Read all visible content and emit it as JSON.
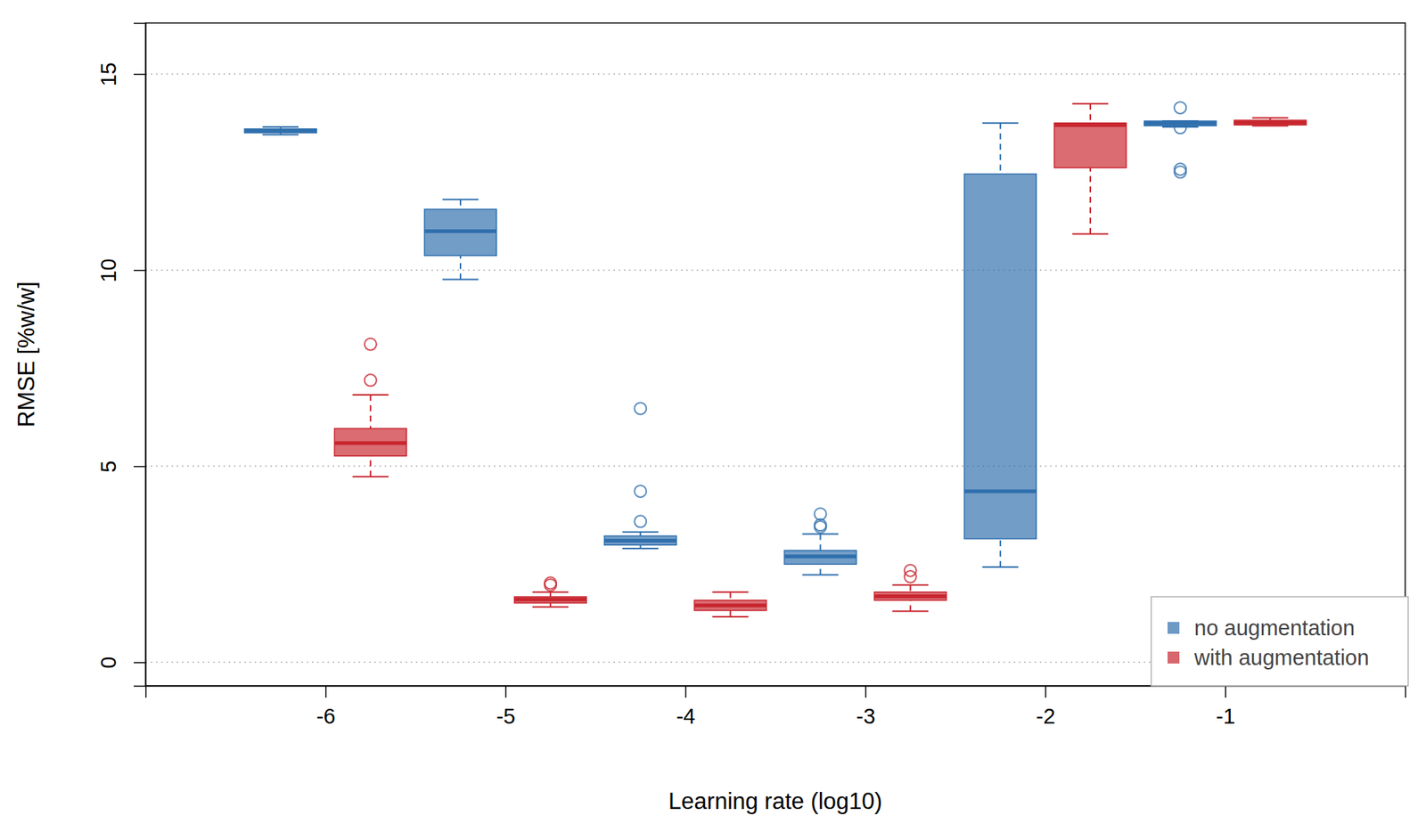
{
  "chart_data": {
    "type": "box",
    "xlabel": "Learning rate (log10)",
    "ylabel": "RMSE [%w/w]",
    "xlim": [
      -7,
      0
    ],
    "ylim": [
      -0.6,
      16.3
    ],
    "xticks": [
      -6,
      -5,
      -4,
      -3,
      -2,
      -1
    ],
    "yticks": [
      0,
      5,
      10,
      15
    ],
    "grid": true,
    "legend": "bottom-right",
    "series": [
      {
        "name": "no augmentation",
        "color": "#2f6fad",
        "x": [
          -6.25,
          -5.25,
          -4.25,
          -3.25,
          -2.25,
          -1.25
        ],
        "min": [
          13.45,
          9.76,
          2.9,
          2.23,
          2.43,
          13.65
        ],
        "q1": [
          13.5,
          10.37,
          2.99,
          2.5,
          3.15,
          13.68
        ],
        "median": [
          13.55,
          10.99,
          3.1,
          2.7,
          4.36,
          13.74
        ],
        "q3": [
          13.6,
          11.55,
          3.22,
          2.85,
          12.45,
          13.8
        ],
        "max": [
          13.65,
          11.8,
          3.32,
          3.27,
          13.75,
          13.8
        ],
        "outliers": [
          [],
          [],
          [
            6.47,
            4.36,
            3.59
          ],
          [
            3.78,
            3.5,
            3.45
          ],
          [],
          [
            14.14,
            13.63,
            12.57,
            12.5
          ]
        ]
      },
      {
        "name": "with augmentation",
        "color": "#c8262f",
        "x": [
          -5.75,
          -4.75,
          -3.75,
          -2.75,
          -1.75,
          -0.75
        ],
        "min": [
          4.73,
          1.41,
          1.16,
          1.3,
          10.92,
          13.68
        ],
        "q1": [
          5.26,
          1.51,
          1.32,
          1.58,
          12.61,
          13.7
        ],
        "median": [
          5.59,
          1.6,
          1.45,
          1.68,
          13.7,
          13.76
        ],
        "q3": [
          5.96,
          1.67,
          1.58,
          1.79,
          13.75,
          13.82
        ],
        "max": [
          6.82,
          1.79,
          1.79,
          1.97,
          14.24,
          13.88
        ],
        "outliers": [
          [
            8.11,
            7.19
          ],
          [
            2.02,
            1.97
          ],
          [],
          [
            2.34,
            2.18
          ],
          [],
          []
        ]
      }
    ]
  }
}
